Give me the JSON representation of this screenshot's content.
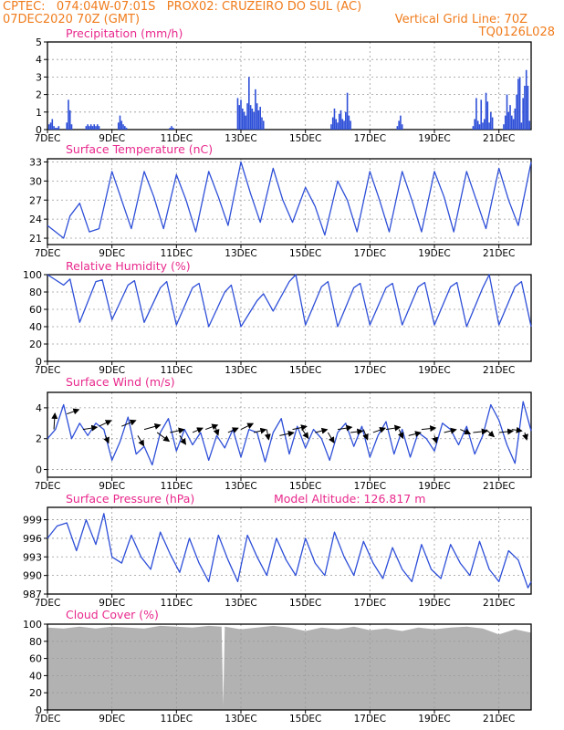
{
  "header": {
    "line1": "CPTEC:   074:04W-07:01S   PROX02: CRUZEIRO DO SUL (AC)",
    "line2_left": "07DEC2020 70Z (GMT)",
    "line2_right": "Vertical Grid Line: 70Z",
    "line3_right": "TQ0126L028"
  },
  "colors": {
    "header": "#f07c1c",
    "title": "#e8288c",
    "line": "#2e4fd8",
    "cloud": "#b2b2b2",
    "grid": "#9a9a9a"
  },
  "x_ticks": [
    "7DEC",
    "9DEC",
    "11DEC",
    "13DEC",
    "15DEC",
    "17DEC",
    "19DEC",
    "21DEC"
  ],
  "chart_data": [
    {
      "type": "bar",
      "title": "Precipitation (mm/h)",
      "x_unit": "days since 7DEC 00Z",
      "ylim": [
        0,
        5
      ],
      "yticks": [
        0,
        1,
        2,
        3,
        4,
        5
      ],
      "grid": true,
      "x": [
        0.05,
        0.1,
        0.15,
        0.2,
        0.25,
        0.3,
        0.35,
        0.6,
        0.65,
        0.7,
        0.75,
        1.2,
        1.25,
        1.3,
        1.35,
        1.4,
        1.45,
        1.5,
        1.55,
        1.6,
        2.2,
        2.25,
        2.3,
        2.35,
        2.4,
        2.45,
        3.8,
        3.85,
        3.9,
        5.9,
        5.95,
        6.0,
        6.05,
        6.1,
        6.15,
        6.2,
        6.25,
        6.3,
        6.35,
        6.4,
        6.45,
        6.5,
        6.55,
        6.6,
        6.65,
        6.7,
        8.8,
        8.85,
        8.9,
        8.95,
        9.0,
        9.05,
        9.1,
        9.15,
        9.2,
        9.25,
        9.3,
        9.35,
        9.4,
        10.85,
        10.9,
        10.95,
        11.0,
        13.2,
        13.25,
        13.3,
        13.35,
        13.4,
        13.45,
        13.5,
        13.55,
        13.6,
        13.65,
        13.7,
        13.75,
        13.8,
        14.15,
        14.2,
        14.25,
        14.3,
        14.35,
        14.4,
        14.45,
        14.5,
        14.55,
        14.6,
        14.65,
        14.7,
        14.75,
        14.8,
        14.85,
        14.9,
        14.95
      ],
      "values": [
        0.3,
        0.4,
        0.6,
        0.2,
        0.1,
        0.1,
        0.2,
        0.4,
        1.7,
        1.1,
        0.3,
        0.2,
        0.3,
        0.2,
        0.3,
        0.2,
        0.3,
        0.2,
        0.3,
        0.2,
        0.4,
        0.8,
        0.5,
        0.3,
        0.2,
        0.1,
        0.1,
        0.2,
        0.1,
        1.8,
        1.4,
        1.7,
        1.2,
        1.0,
        0.8,
        1.5,
        3.0,
        1.4,
        1.2,
        1.0,
        2.3,
        1.5,
        1.1,
        1.3,
        0.7,
        0.5,
        0.3,
        0.7,
        1.2,
        0.6,
        0.4,
        0.9,
        1.1,
        0.6,
        0.5,
        1.0,
        2.1,
        0.8,
        0.5,
        0.2,
        0.5,
        0.8,
        0.3,
        0.2,
        0.6,
        1.8,
        0.5,
        0.3,
        1.7,
        0.4,
        0.6,
        2.1,
        1.6,
        0.4,
        1.0,
        0.7,
        0.3,
        0.8,
        2.0,
        1.0,
        1.4,
        0.8,
        0.6,
        1.2,
        2.0,
        2.9,
        3.0,
        0.4,
        1.8,
        2.5,
        3.4,
        2.5,
        0.5
      ]
    },
    {
      "type": "line",
      "title": "Surface Temperature (nC)",
      "x_unit": "days since 7DEC 00Z",
      "ylim": [
        20,
        33.5
      ],
      "yticks": [
        21,
        24,
        27,
        30,
        33
      ],
      "grid": true,
      "x": [
        0.0,
        0.5,
        0.7,
        1.0,
        1.3,
        1.6,
        2.0,
        2.3,
        2.6,
        3.0,
        3.3,
        3.6,
        4.0,
        4.3,
        4.6,
        5.0,
        5.3,
        5.6,
        6.0,
        6.3,
        6.6,
        7.0,
        7.3,
        7.6,
        8.0,
        8.3,
        8.6,
        9.0,
        9.3,
        9.6,
        10.0,
        10.3,
        10.6,
        11.0,
        11.3,
        11.6,
        12.0,
        12.3,
        12.6,
        13.0,
        13.3,
        13.6,
        14.0,
        14.3,
        14.6,
        15.0
      ],
      "values": [
        23.0,
        21.0,
        24.5,
        26.5,
        22.0,
        22.5,
        31.5,
        27.0,
        22.5,
        31.5,
        27.5,
        22.5,
        31.0,
        27.0,
        22.0,
        31.5,
        27.5,
        23.0,
        33.0,
        28.0,
        23.5,
        32.0,
        27.0,
        23.5,
        29.0,
        26.0,
        21.5,
        30.0,
        27.0,
        22.0,
        31.5,
        27.0,
        22.0,
        31.5,
        27.0,
        22.0,
        31.5,
        27.5,
        22.0,
        31.5,
        27.0,
        22.5,
        32.0,
        27.0,
        23.0,
        33.0
      ]
    },
    {
      "type": "line",
      "title": "Relative Humidity (%)",
      "x_unit": "days since 7DEC 00Z",
      "ylim": [
        0,
        100
      ],
      "yticks": [
        0,
        20,
        40,
        60,
        80,
        100
      ],
      "grid": true,
      "x": [
        0.0,
        0.5,
        0.7,
        1.0,
        1.5,
        1.7,
        2.0,
        2.5,
        2.7,
        3.0,
        3.5,
        3.7,
        4.0,
        4.5,
        4.7,
        5.0,
        5.5,
        5.7,
        6.0,
        6.5,
        6.7,
        7.0,
        7.5,
        7.7,
        8.0,
        8.5,
        8.7,
        9.0,
        9.5,
        9.7,
        10.0,
        10.5,
        10.7,
        11.0,
        11.5,
        11.7,
        12.0,
        12.5,
        12.7,
        13.0,
        13.5,
        13.7,
        14.0,
        14.5,
        14.7,
        15.0
      ],
      "values": [
        100.0,
        88.0,
        95.0,
        45.0,
        92.0,
        94.0,
        48.0,
        88.0,
        93.0,
        45.0,
        85.0,
        92.0,
        42.0,
        85.0,
        90.0,
        40.0,
        80.0,
        88.0,
        40.0,
        70.0,
        78.0,
        58.0,
        92.0,
        100.0,
        42.0,
        86.0,
        92.0,
        40.0,
        85.0,
        90.0,
        42.0,
        85.0,
        90.0,
        42.0,
        86.0,
        91.0,
        42.0,
        86.0,
        91.0,
        40.0,
        85.0,
        100.0,
        42.0,
        86.0,
        92.0,
        40.0
      ]
    },
    {
      "type": "line",
      "title": "Surface Wind (m/s)",
      "x_unit": "days since 7DEC 00Z",
      "ylim": [
        -0.5,
        5
      ],
      "yticks": [
        0,
        2,
        4
      ],
      "grid": true,
      "x": [
        0.0,
        0.25,
        0.5,
        0.75,
        1.0,
        1.25,
        1.5,
        1.75,
        2.0,
        2.25,
        2.5,
        2.75,
        3.0,
        3.25,
        3.5,
        3.75,
        4.0,
        4.25,
        4.5,
        4.75,
        5.0,
        5.25,
        5.5,
        5.75,
        6.0,
        6.25,
        6.5,
        6.75,
        7.0,
        7.25,
        7.5,
        7.75,
        8.0,
        8.25,
        8.5,
        8.75,
        9.0,
        9.25,
        9.5,
        9.75,
        10.0,
        10.25,
        10.5,
        10.75,
        11.0,
        11.25,
        11.5,
        11.75,
        12.0,
        12.25,
        12.5,
        12.75,
        13.0,
        13.25,
        13.5,
        13.75,
        14.0,
        14.25,
        14.5,
        14.75,
        15.0
      ],
      "values": [
        2.0,
        2.6,
        4.2,
        2.0,
        3.0,
        2.2,
        3.0,
        2.6,
        0.6,
        1.8,
        3.4,
        1.0,
        1.5,
        0.3,
        2.4,
        3.3,
        1.2,
        2.6,
        1.6,
        2.4,
        0.6,
        2.2,
        1.4,
        2.6,
        0.8,
        2.6,
        2.4,
        0.5,
        2.4,
        3.3,
        1.0,
        2.8,
        1.4,
        2.6,
        2.0,
        0.6,
        2.4,
        3.0,
        1.5,
        2.8,
        0.8,
        2.2,
        3.1,
        1.0,
        2.6,
        0.8,
        2.4,
        2.0,
        1.2,
        3.0,
        2.6,
        1.6,
        2.8,
        1.0,
        2.2,
        4.2,
        3.2,
        1.6,
        0.4,
        4.4,
        2.5
      ],
      "vectors": [
        {
          "x": 0.2,
          "y": 2.6,
          "u": 0.1,
          "v": 2.2
        },
        {
          "x": 0.6,
          "y": 3.6,
          "u": 1.2,
          "v": 0.6
        },
        {
          "x": 1.1,
          "y": 2.6,
          "u": 1.4,
          "v": 0.3
        },
        {
          "x": 1.6,
          "y": 2.8,
          "u": 1.2,
          "v": 0.8
        },
        {
          "x": 1.8,
          "y": 2.2,
          "u": 0.3,
          "v": -1.0
        },
        {
          "x": 2.3,
          "y": 2.8,
          "u": 1.4,
          "v": 0.8
        },
        {
          "x": 2.8,
          "y": 2.2,
          "u": 0.6,
          "v": -1.4
        },
        {
          "x": 3.0,
          "y": 2.6,
          "u": 1.6,
          "v": 0.6
        },
        {
          "x": 3.4,
          "y": 2.4,
          "u": 1.2,
          "v": -1.2
        },
        {
          "x": 3.8,
          "y": 2.4,
          "u": 1.4,
          "v": 0.4
        },
        {
          "x": 4.1,
          "y": 2.2,
          "u": 0.6,
          "v": -1.2
        },
        {
          "x": 4.5,
          "y": 2.4,
          "u": 1.0,
          "v": 0.6
        },
        {
          "x": 4.9,
          "y": 2.6,
          "u": 1.2,
          "v": 0.6
        },
        {
          "x": 5.2,
          "y": 2.8,
          "u": 0.3,
          "v": -1.2
        },
        {
          "x": 5.6,
          "y": 2.4,
          "u": 1.0,
          "v": 0.6
        },
        {
          "x": 6.0,
          "y": 2.6,
          "u": 1.2,
          "v": 0.8
        },
        {
          "x": 6.4,
          "y": 2.4,
          "u": 1.2,
          "v": 0.4
        },
        {
          "x": 6.8,
          "y": 2.6,
          "u": 0.2,
          "v": -1.4
        },
        {
          "x": 7.2,
          "y": 2.2,
          "u": 1.4,
          "v": 0.4
        },
        {
          "x": 7.6,
          "y": 2.6,
          "u": 1.4,
          "v": 0.4
        },
        {
          "x": 7.9,
          "y": 2.6,
          "u": 0.6,
          "v": -1.2
        },
        {
          "x": 8.3,
          "y": 2.4,
          "u": 1.2,
          "v": 0.4
        },
        {
          "x": 8.7,
          "y": 2.4,
          "u": 0.6,
          "v": -1.4
        },
        {
          "x": 9.0,
          "y": 2.6,
          "u": 1.4,
          "v": 0.3
        },
        {
          "x": 9.4,
          "y": 2.4,
          "u": 1.2,
          "v": 0.2
        },
        {
          "x": 9.8,
          "y": 2.6,
          "u": 0.4,
          "v": -1.4
        },
        {
          "x": 10.1,
          "y": 2.4,
          "u": 1.2,
          "v": 0.6
        },
        {
          "x": 10.5,
          "y": 2.6,
          "u": 1.4,
          "v": 0.3
        },
        {
          "x": 10.9,
          "y": 2.6,
          "u": 0.4,
          "v": -1.2
        },
        {
          "x": 11.2,
          "y": 2.2,
          "u": 1.2,
          "v": 0.4
        },
        {
          "x": 11.6,
          "y": 2.6,
          "u": 1.4,
          "v": 0.2
        },
        {
          "x": 12.0,
          "y": 2.2,
          "u": 0.2,
          "v": -1.0
        },
        {
          "x": 12.3,
          "y": 2.4,
          "u": 1.2,
          "v": 0.4
        },
        {
          "x": 12.8,
          "y": 2.6,
          "u": 1.0,
          "v": -0.6
        },
        {
          "x": 13.2,
          "y": 2.4,
          "u": 1.4,
          "v": 0.2
        },
        {
          "x": 13.6,
          "y": 2.6,
          "u": 0.8,
          "v": -1.0
        },
        {
          "x": 14.0,
          "y": 2.4,
          "u": 1.4,
          "v": 0.2
        },
        {
          "x": 14.4,
          "y": 2.6,
          "u": 1.0,
          "v": -0.2
        },
        {
          "x": 14.8,
          "y": 2.4,
          "u": 0.2,
          "v": -1.0
        }
      ]
    },
    {
      "type": "line",
      "title": "Surface Pressure (hPa)",
      "annotation": "Model Altitude: 126.817 m",
      "x_unit": "days since 7DEC 00Z",
      "ylim": [
        987,
        1001
      ],
      "yticks": [
        987,
        990,
        993,
        996,
        999
      ],
      "grid": true,
      "x": [
        0.0,
        0.3,
        0.6,
        0.9,
        1.2,
        1.5,
        1.75,
        2.0,
        2.3,
        2.6,
        2.9,
        3.2,
        3.5,
        3.8,
        4.1,
        4.4,
        4.7,
        5.0,
        5.3,
        5.6,
        5.9,
        6.2,
        6.5,
        6.8,
        7.1,
        7.4,
        7.7,
        8.0,
        8.3,
        8.6,
        8.9,
        9.2,
        9.5,
        9.8,
        10.1,
        10.4,
        10.7,
        11.0,
        11.3,
        11.6,
        11.9,
        12.2,
        12.5,
        12.8,
        13.1,
        13.4,
        13.7,
        14.0,
        14.3,
        14.6,
        14.9,
        15.0
      ],
      "values": [
        996.0,
        998.0,
        998.5,
        994.0,
        999.0,
        995.0,
        1000.0,
        993.0,
        992.0,
        996.5,
        993.0,
        991.0,
        997.0,
        993.5,
        990.5,
        996.0,
        992.0,
        989.0,
        996.5,
        992.5,
        989.0,
        996.5,
        993.0,
        990.0,
        996.0,
        992.5,
        990.0,
        996.0,
        992.0,
        990.0,
        997.0,
        993.0,
        990.0,
        995.5,
        992.0,
        989.5,
        994.5,
        991.0,
        989.0,
        995.0,
        991.0,
        989.5,
        995.0,
        992.0,
        990.0,
        995.5,
        991.0,
        989.0,
        994.0,
        992.5,
        988.0,
        989.0
      ]
    },
    {
      "type": "area",
      "title": "Cloud Cover (%)",
      "x_unit": "days since 7DEC 00Z",
      "ylim": [
        0,
        100
      ],
      "yticks": [
        0,
        20,
        40,
        60,
        80,
        100
      ],
      "grid": true,
      "x": [
        0.0,
        0.5,
        1.0,
        1.5,
        2.0,
        2.5,
        3.0,
        3.5,
        4.0,
        4.5,
        5.0,
        5.4,
        5.45,
        5.5,
        6.0,
        6.5,
        7.0,
        7.5,
        8.0,
        8.5,
        9.0,
        9.5,
        10.0,
        10.5,
        11.0,
        11.5,
        12.0,
        12.5,
        13.0,
        13.5,
        14.0,
        14.5,
        15.0
      ],
      "values": [
        96.0,
        95.0,
        97.0,
        95.0,
        97.0,
        96.0,
        95.0,
        98.0,
        97.0,
        96.0,
        98.0,
        97.0,
        5.0,
        97.0,
        94.0,
        96.0,
        98.0,
        96.0,
        92.0,
        96.0,
        94.0,
        97.0,
        93.0,
        95.0,
        92.0,
        96.0,
        94.0,
        96.0,
        97.0,
        95.0,
        88.0,
        94.0,
        90.0
      ]
    }
  ]
}
